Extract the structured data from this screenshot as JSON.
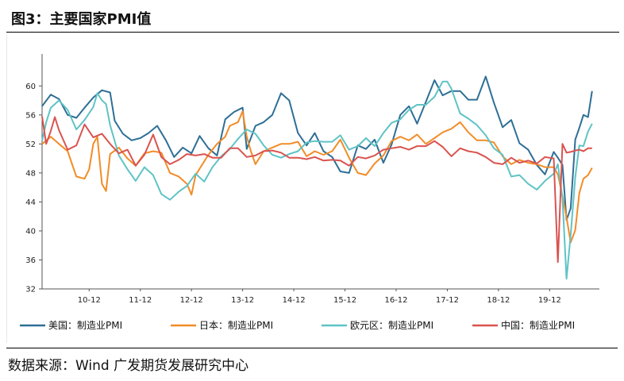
{
  "title": "图3：主要国家PMI值",
  "source": "数据来源：Wind  广发期货发展研究中心",
  "chart_data": {
    "type": "line",
    "title": "",
    "xlabel": "",
    "ylabel": "",
    "ylim": [
      32,
      62
    ],
    "yticks": [
      32,
      36,
      40,
      44,
      48,
      52,
      56,
      60
    ],
    "xlim": [
      2010.0,
      2020.83
    ],
    "xticks": [
      {
        "label": "10-12",
        "x": 2010.92
      },
      {
        "label": "11-12",
        "x": 2011.92
      },
      {
        "label": "12-12",
        "x": 2012.92
      },
      {
        "label": "13-12",
        "x": 2013.92
      },
      {
        "label": "14-12",
        "x": 2014.92
      },
      {
        "label": "15-12",
        "x": 2015.92
      },
      {
        "label": "16-12",
        "x": 2016.92
      },
      {
        "label": "17-12",
        "x": 2017.92
      },
      {
        "label": "18-12",
        "x": 2018.92
      },
      {
        "label": "19-12",
        "x": 2019.92
      }
    ],
    "grid": false,
    "legend_position": "bottom",
    "series": [
      {
        "name": "美国：制造业PMI",
        "color": "#2e6f96",
        "points": [
          [
            2010.0,
            57.2
          ],
          [
            2010.17,
            58.8
          ],
          [
            2010.33,
            58.2
          ],
          [
            2010.5,
            56.0
          ],
          [
            2010.67,
            55.6
          ],
          [
            2010.83,
            57.0
          ],
          [
            2011.0,
            58.4
          ],
          [
            2011.17,
            59.4
          ],
          [
            2011.33,
            59.1
          ],
          [
            2011.42,
            55.2
          ],
          [
            2011.58,
            53.4
          ],
          [
            2011.75,
            52.5
          ],
          [
            2011.92,
            52.8
          ],
          [
            2012.08,
            53.5
          ],
          [
            2012.25,
            54.5
          ],
          [
            2012.42,
            52.5
          ],
          [
            2012.58,
            50.2
          ],
          [
            2012.75,
            51.5
          ],
          [
            2012.92,
            50.7
          ],
          [
            2013.08,
            53.1
          ],
          [
            2013.25,
            51.4
          ],
          [
            2013.42,
            50.4
          ],
          [
            2013.58,
            55.4
          ],
          [
            2013.75,
            56.4
          ],
          [
            2013.92,
            57.0
          ],
          [
            2014.0,
            51.3
          ],
          [
            2014.17,
            54.5
          ],
          [
            2014.33,
            55.0
          ],
          [
            2014.5,
            56.0
          ],
          [
            2014.67,
            59.0
          ],
          [
            2014.83,
            58.0
          ],
          [
            2015.0,
            53.5
          ],
          [
            2015.17,
            51.8
          ],
          [
            2015.33,
            53.5
          ],
          [
            2015.5,
            51.0
          ],
          [
            2015.67,
            50.2
          ],
          [
            2015.83,
            48.2
          ],
          [
            2016.0,
            48.0
          ],
          [
            2016.17,
            51.8
          ],
          [
            2016.33,
            51.3
          ],
          [
            2016.5,
            52.6
          ],
          [
            2016.67,
            49.4
          ],
          [
            2016.83,
            51.9
          ],
          [
            2017.0,
            56.0
          ],
          [
            2017.17,
            57.2
          ],
          [
            2017.33,
            54.8
          ],
          [
            2017.5,
            57.8
          ],
          [
            2017.67,
            60.8
          ],
          [
            2017.83,
            58.7
          ],
          [
            2018.0,
            59.3
          ],
          [
            2018.17,
            59.3
          ],
          [
            2018.33,
            58.1
          ],
          [
            2018.5,
            58.1
          ],
          [
            2018.67,
            61.3
          ],
          [
            2018.83,
            57.7
          ],
          [
            2019.0,
            54.3
          ],
          [
            2019.17,
            55.3
          ],
          [
            2019.33,
            52.1
          ],
          [
            2019.5,
            51.2
          ],
          [
            2019.67,
            49.1
          ],
          [
            2019.83,
            47.8
          ],
          [
            2020.0,
            50.9
          ],
          [
            2020.08,
            50.1
          ],
          [
            2020.17,
            49.1
          ],
          [
            2020.25,
            41.5
          ],
          [
            2020.33,
            43.1
          ],
          [
            2020.42,
            52.6
          ],
          [
            2020.5,
            54.2
          ],
          [
            2020.58,
            56.0
          ],
          [
            2020.67,
            55.7
          ],
          [
            2020.75,
            59.3
          ]
        ]
      },
      {
        "name": "日本：制造业PMI",
        "color": "#f28c28",
        "points": [
          [
            2010.0,
            52.0
          ],
          [
            2010.17,
            53.0
          ],
          [
            2010.33,
            52.0
          ],
          [
            2010.5,
            51.0
          ],
          [
            2010.67,
            47.5
          ],
          [
            2010.83,
            47.2
          ],
          [
            2010.92,
            48.5
          ],
          [
            2011.0,
            52.0
          ],
          [
            2011.08,
            53.0
          ],
          [
            2011.17,
            46.5
          ],
          [
            2011.25,
            45.5
          ],
          [
            2011.33,
            50.6
          ],
          [
            2011.5,
            51.5
          ],
          [
            2011.67,
            50.0
          ],
          [
            2011.83,
            49.0
          ],
          [
            2012.0,
            50.7
          ],
          [
            2012.17,
            51.0
          ],
          [
            2012.33,
            50.8
          ],
          [
            2012.5,
            48.0
          ],
          [
            2012.67,
            47.5
          ],
          [
            2012.83,
            46.5
          ],
          [
            2012.92,
            45.0
          ],
          [
            2013.0,
            47.7
          ],
          [
            2013.25,
            50.5
          ],
          [
            2013.42,
            52.0
          ],
          [
            2013.58,
            53.0
          ],
          [
            2013.67,
            54.5
          ],
          [
            2013.83,
            55.0
          ],
          [
            2013.92,
            56.5
          ],
          [
            2014.0,
            53.0
          ],
          [
            2014.08,
            51.0
          ],
          [
            2014.17,
            49.2
          ],
          [
            2014.33,
            51.0
          ],
          [
            2014.5,
            51.5
          ],
          [
            2014.67,
            52.0
          ],
          [
            2014.83,
            52.0
          ],
          [
            2015.0,
            52.3
          ],
          [
            2015.17,
            50.3
          ],
          [
            2015.33,
            51.0
          ],
          [
            2015.5,
            50.5
          ],
          [
            2015.67,
            51.0
          ],
          [
            2015.83,
            52.6
          ],
          [
            2016.0,
            50.1
          ],
          [
            2016.17,
            48.0
          ],
          [
            2016.33,
            47.7
          ],
          [
            2016.5,
            49.3
          ],
          [
            2016.67,
            50.4
          ],
          [
            2016.83,
            52.4
          ],
          [
            2017.0,
            53.0
          ],
          [
            2017.17,
            52.5
          ],
          [
            2017.33,
            53.3
          ],
          [
            2017.5,
            52.0
          ],
          [
            2017.67,
            52.8
          ],
          [
            2017.83,
            53.6
          ],
          [
            2018.0,
            54.1
          ],
          [
            2018.17,
            55.0
          ],
          [
            2018.33,
            53.6
          ],
          [
            2018.5,
            52.5
          ],
          [
            2018.67,
            52.5
          ],
          [
            2018.83,
            52.2
          ],
          [
            2019.0,
            50.3
          ],
          [
            2019.17,
            49.2
          ],
          [
            2019.33,
            49.8
          ],
          [
            2019.5,
            49.4
          ],
          [
            2019.67,
            49.2
          ],
          [
            2019.83,
            48.8
          ],
          [
            2020.0,
            48.8
          ],
          [
            2020.08,
            47.8
          ],
          [
            2020.17,
            44.8
          ],
          [
            2020.25,
            41.9
          ],
          [
            2020.33,
            38.4
          ],
          [
            2020.42,
            40.1
          ],
          [
            2020.5,
            45.2
          ],
          [
            2020.58,
            47.2
          ],
          [
            2020.67,
            47.7
          ],
          [
            2020.75,
            48.7
          ]
        ]
      },
      {
        "name": "欧元区：制造业PMI",
        "color": "#5fc3c5",
        "points": [
          [
            2010.0,
            52.4
          ],
          [
            2010.08,
            55.0
          ],
          [
            2010.17,
            57.0
          ],
          [
            2010.33,
            58.0
          ],
          [
            2010.5,
            56.7
          ],
          [
            2010.67,
            54.0
          ],
          [
            2010.83,
            55.3
          ],
          [
            2011.0,
            57.1
          ],
          [
            2011.08,
            59.0
          ],
          [
            2011.17,
            58.0
          ],
          [
            2011.25,
            57.5
          ],
          [
            2011.33,
            54.6
          ],
          [
            2011.5,
            50.4
          ],
          [
            2011.67,
            48.5
          ],
          [
            2011.83,
            46.9
          ],
          [
            2012.0,
            48.8
          ],
          [
            2012.17,
            47.7
          ],
          [
            2012.33,
            45.1
          ],
          [
            2012.5,
            44.3
          ],
          [
            2012.67,
            45.4
          ],
          [
            2012.83,
            46.2
          ],
          [
            2013.0,
            47.9
          ],
          [
            2013.17,
            46.8
          ],
          [
            2013.33,
            48.8
          ],
          [
            2013.5,
            50.3
          ],
          [
            2013.67,
            51.3
          ],
          [
            2013.83,
            52.7
          ],
          [
            2014.0,
            54.0
          ],
          [
            2014.17,
            53.4
          ],
          [
            2014.33,
            51.8
          ],
          [
            2014.5,
            50.5
          ],
          [
            2014.67,
            50.1
          ],
          [
            2014.83,
            50.6
          ],
          [
            2015.0,
            51.0
          ],
          [
            2015.17,
            52.2
          ],
          [
            2015.33,
            52.4
          ],
          [
            2015.5,
            52.3
          ],
          [
            2015.67,
            52.3
          ],
          [
            2015.83,
            53.2
          ],
          [
            2016.0,
            51.2
          ],
          [
            2016.17,
            51.7
          ],
          [
            2016.33,
            52.8
          ],
          [
            2016.5,
            51.7
          ],
          [
            2016.67,
            53.5
          ],
          [
            2016.83,
            54.9
          ],
          [
            2017.0,
            55.4
          ],
          [
            2017.17,
            56.7
          ],
          [
            2017.33,
            57.4
          ],
          [
            2017.5,
            57.4
          ],
          [
            2017.67,
            58.5
          ],
          [
            2017.83,
            60.6
          ],
          [
            2017.92,
            60.6
          ],
          [
            2018.0,
            59.6
          ],
          [
            2018.17,
            56.2
          ],
          [
            2018.33,
            55.5
          ],
          [
            2018.5,
            54.6
          ],
          [
            2018.67,
            53.2
          ],
          [
            2018.83,
            51.4
          ],
          [
            2019.0,
            50.5
          ],
          [
            2019.17,
            47.5
          ],
          [
            2019.33,
            47.7
          ],
          [
            2019.5,
            46.5
          ],
          [
            2019.67,
            45.7
          ],
          [
            2019.83,
            46.9
          ],
          [
            2020.0,
            47.9
          ],
          [
            2020.08,
            49.2
          ],
          [
            2020.17,
            44.5
          ],
          [
            2020.25,
            33.4
          ],
          [
            2020.33,
            39.4
          ],
          [
            2020.42,
            47.4
          ],
          [
            2020.5,
            51.8
          ],
          [
            2020.58,
            51.7
          ],
          [
            2020.67,
            53.7
          ],
          [
            2020.75,
            54.8
          ]
        ]
      },
      {
        "name": "中国：制造业PMI",
        "color": "#d9534f",
        "points": [
          [
            2010.0,
            55.8
          ],
          [
            2010.08,
            52.0
          ],
          [
            2010.17,
            53.8
          ],
          [
            2010.25,
            55.7
          ],
          [
            2010.33,
            53.9
          ],
          [
            2010.5,
            51.2
          ],
          [
            2010.67,
            51.8
          ],
          [
            2010.83,
            54.7
          ],
          [
            2011.0,
            52.9
          ],
          [
            2011.17,
            53.4
          ],
          [
            2011.33,
            52.0
          ],
          [
            2011.5,
            50.7
          ],
          [
            2011.67,
            51.2
          ],
          [
            2011.83,
            49.0
          ],
          [
            2012.0,
            50.5
          ],
          [
            2012.17,
            53.3
          ],
          [
            2012.33,
            50.2
          ],
          [
            2012.5,
            49.2
          ],
          [
            2012.67,
            49.8
          ],
          [
            2012.83,
            50.6
          ],
          [
            2013.0,
            50.4
          ],
          [
            2013.17,
            50.6
          ],
          [
            2013.33,
            50.1
          ],
          [
            2013.5,
            50.1
          ],
          [
            2013.67,
            51.4
          ],
          [
            2013.83,
            51.4
          ],
          [
            2014.0,
            50.2
          ],
          [
            2014.17,
            50.4
          ],
          [
            2014.33,
            51.0
          ],
          [
            2014.5,
            51.1
          ],
          [
            2014.67,
            50.8
          ],
          [
            2014.83,
            50.1
          ],
          [
            2015.0,
            50.1
          ],
          [
            2015.17,
            49.9
          ],
          [
            2015.33,
            50.2
          ],
          [
            2015.5,
            49.7
          ],
          [
            2015.67,
            49.8
          ],
          [
            2015.83,
            49.7
          ],
          [
            2016.0,
            49.0
          ],
          [
            2016.17,
            50.2
          ],
          [
            2016.33,
            50.0
          ],
          [
            2016.5,
            50.4
          ],
          [
            2016.67,
            51.2
          ],
          [
            2016.83,
            51.4
          ],
          [
            2017.0,
            51.6
          ],
          [
            2017.17,
            51.2
          ],
          [
            2017.33,
            51.7
          ],
          [
            2017.5,
            51.7
          ],
          [
            2017.67,
            52.4
          ],
          [
            2017.83,
            51.6
          ],
          [
            2018.0,
            50.3
          ],
          [
            2018.17,
            51.4
          ],
          [
            2018.33,
            51.0
          ],
          [
            2018.5,
            50.8
          ],
          [
            2018.67,
            50.2
          ],
          [
            2018.83,
            49.4
          ],
          [
            2019.0,
            49.2
          ],
          [
            2019.17,
            50.1
          ],
          [
            2019.33,
            49.4
          ],
          [
            2019.5,
            49.7
          ],
          [
            2019.67,
            49.3
          ],
          [
            2019.83,
            50.2
          ],
          [
            2020.0,
            50.0
          ],
          [
            2020.08,
            35.7
          ],
          [
            2020.17,
            52.0
          ],
          [
            2020.25,
            50.8
          ],
          [
            2020.33,
            50.9
          ],
          [
            2020.42,
            51.1
          ],
          [
            2020.5,
            51.2
          ],
          [
            2020.58,
            51.0
          ],
          [
            2020.67,
            51.4
          ],
          [
            2020.75,
            51.4
          ]
        ]
      }
    ]
  }
}
